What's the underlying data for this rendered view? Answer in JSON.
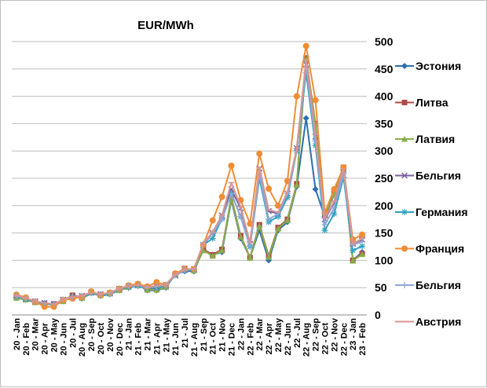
{
  "chart_data": {
    "type": "line",
    "title": "EUR/MWh",
    "xlabel": "",
    "ylabel": "",
    "ylim": [
      0,
      500
    ],
    "yticks": [
      0,
      50,
      100,
      150,
      200,
      250,
      300,
      350,
      400,
      450,
      500
    ],
    "grid": true,
    "legend": "right",
    "y_axis_side": "right",
    "categories": [
      "20 - Jan",
      "20 - Feb",
      "20 - Mar",
      "20 - Apr",
      "20 - May",
      "20 - Jun",
      "20 - Jul",
      "20 - Aug",
      "20 - Sep",
      "20 - Oct",
      "20 - Nov",
      "20 - Dec",
      "21 - Jan",
      "21 - Feb",
      "21 - Mar",
      "21 - Apr",
      "21 - May",
      "21 - Jun",
      "21 - Jul",
      "21 - Aug",
      "21 - Sep",
      "21 - Oct",
      "21 - Nov",
      "21 - Dec",
      "22 - Jan",
      "22 - Feb",
      "22 - Mar",
      "22 - Apr",
      "22 - May",
      "22 - Jun",
      "22 - Jul",
      "22 - Aug",
      "22 - Sep",
      "22 - Oct",
      "22 - Nov",
      "22 - Dec",
      "23 - Jan",
      "23 - Feb"
    ],
    "x_tick_labels": [
      "20 - Jan",
      "20 - Mar",
      "20 - May",
      "20 - Jul",
      "20 - Sep",
      "20 - Nov",
      "21 - Jan",
      "21 - Mar",
      "21 - May",
      "21 - Jul",
      "21 - Sep",
      "21 - Nov",
      "22 - Jan",
      "22 - Mar",
      "22 - May",
      "22 - Jul",
      "22 - Sep",
      "22 - Nov",
      "23 - Jan"
    ],
    "x_tick_labels_2": [
      "20 - Feb",
      "20 - Apr",
      "20 - Jun",
      "20 - Aug",
      "20 - Oct",
      "20 - Dec",
      "21 - Feb",
      "21 - Apr",
      "21 - Jun",
      "21 - Aug",
      "21 - Oct",
      "21 - Dec",
      "22 - Feb",
      "22 - Apr",
      "22 - Jun",
      "22 - Aug",
      "22 - Oct",
      "22 - Dec",
      "23 - Feb"
    ],
    "series": [
      {
        "name": "Эстония",
        "color": "#2e6eae",
        "marker": "diamond",
        "values": [
          31,
          28,
          23,
          21,
          18,
          25,
          35,
          30,
          40,
          35,
          38,
          45,
          50,
          55,
          45,
          45,
          50,
          75,
          80,
          80,
          120,
          110,
          115,
          210,
          140,
          105,
          155,
          100,
          155,
          170,
          235,
          360,
          230,
          180,
          220,
          265,
          100,
          115
        ]
      },
      {
        "name": "Литва",
        "color": "#b04a47",
        "marker": "square",
        "values": [
          33,
          30,
          24,
          21,
          20,
          26,
          36,
          32,
          42,
          37,
          40,
          46,
          52,
          56,
          47,
          47,
          52,
          75,
          85,
          82,
          120,
          110,
          120,
          215,
          145,
          105,
          165,
          108,
          160,
          175,
          240,
          470,
          350,
          185,
          222,
          270,
          100,
          112
        ]
      },
      {
        "name": "Латвия",
        "color": "#8aad4a",
        "marker": "triangle",
        "values": [
          31,
          28,
          23,
          20,
          19,
          25,
          35,
          31,
          41,
          36,
          39,
          45,
          51,
          55,
          46,
          46,
          51,
          74,
          83,
          81,
          118,
          108,
          118,
          213,
          143,
          104,
          163,
          106,
          158,
          173,
          238,
          468,
          348,
          183,
          220,
          268,
          99,
          111
        ]
      },
      {
        "name": "Бельгия",
        "color": "#7b5f9e",
        "marker": "x",
        "values": [
          35,
          30,
          25,
          22,
          20,
          28,
          33,
          35,
          41,
          38,
          40,
          48,
          53,
          55,
          50,
          52,
          55,
          72,
          82,
          84,
          128,
          150,
          182,
          230,
          195,
          130,
          268,
          190,
          185,
          222,
          305,
          458,
          326,
          175,
          205,
          265,
          130,
          138
        ]
      },
      {
        "name": "Германия",
        "color": "#2fa3c2",
        "marker": "star",
        "values": [
          34,
          29,
          24,
          21,
          19,
          27,
          31,
          34,
          40,
          37,
          39,
          47,
          52,
          53,
          49,
          50,
          53,
          73,
          81,
          83,
          128,
          140,
          176,
          222,
          180,
          125,
          250,
          170,
          180,
          215,
          300,
          443,
          310,
          155,
          185,
          252,
          118,
          126
        ]
      },
      {
        "name": "Франция",
        "color": "#ef8d35",
        "marker": "circle",
        "values": [
          37,
          32,
          24,
          15,
          15,
          27,
          30,
          33,
          43,
          37,
          41,
          48,
          54,
          57,
          52,
          60,
          55,
          76,
          84,
          84,
          128,
          173,
          216,
          273,
          210,
          167,
          295,
          231,
          200,
          245,
          400,
          492,
          393,
          187,
          230,
          270,
          138,
          147
        ]
      },
      {
        "name": "Бельгия",
        "color": "#8ea7d6",
        "marker": "plus",
        "values": [
          35,
          30,
          25,
          22,
          20,
          28,
          33,
          35,
          41,
          38,
          40,
          48,
          53,
          55,
          50,
          52,
          55,
          73,
          82,
          84,
          130,
          150,
          175,
          222,
          180,
          126,
          258,
          175,
          185,
          222,
          300,
          455,
          318,
          165,
          196,
          258,
          128,
          134
        ]
      },
      {
        "name": "Австрия",
        "color": "#d99594",
        "marker": "dash",
        "values": [
          36,
          31,
          25,
          22,
          20,
          28,
          33,
          35,
          41,
          38,
          41,
          48,
          53,
          55,
          51,
          53,
          56,
          74,
          83,
          85,
          130,
          152,
          182,
          242,
          198,
          132,
          270,
          192,
          188,
          225,
          305,
          467,
          330,
          177,
          208,
          268,
          130,
          140
        ]
      }
    ]
  }
}
